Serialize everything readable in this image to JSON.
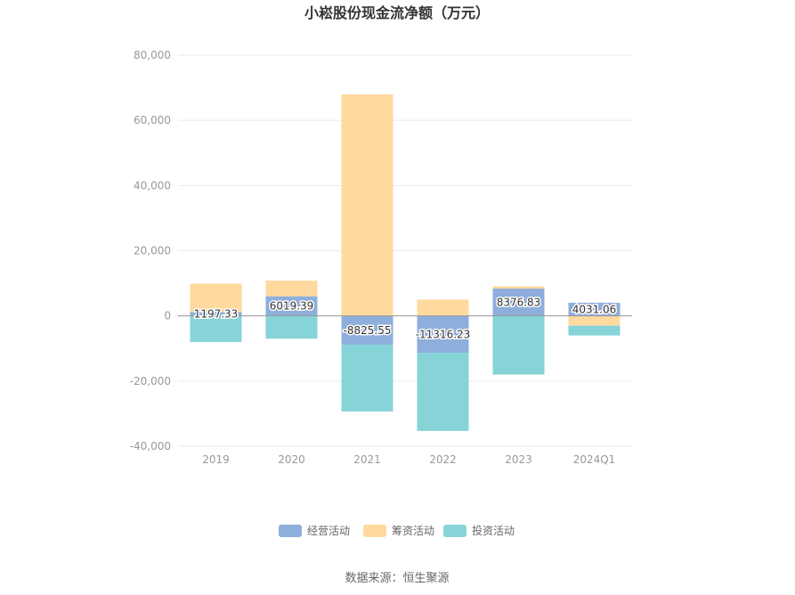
{
  "chart_data": {
    "type": "bar",
    "stacked": true,
    "title": "小崧股份现金流净额（万元）",
    "categories": [
      "2019",
      "2020",
      "2021",
      "2022",
      "2023",
      "2024Q1"
    ],
    "series": [
      {
        "name": "经营活动",
        "color": "#8eaedc",
        "values": [
          1197.33,
          6019.39,
          -8825.55,
          -11316.23,
          8376.83,
          4031.06
        ]
      },
      {
        "name": "筹资活动",
        "color": "#ffd99e",
        "values": [
          8700,
          4800,
          68000,
          5000,
          700,
          -3000
        ]
      },
      {
        "name": "投资活动",
        "color": "#86d4d8",
        "values": [
          -8000,
          -7000,
          -20500,
          -24000,
          -18000,
          -3000
        ]
      }
    ],
    "data_labels": [
      "1197.33",
      "6019.39",
      "-8825.55",
      "-11316.23",
      "8376.83",
      "4031.06"
    ],
    "yticks": [
      "80,000",
      "60,000",
      "40,000",
      "20,000",
      "0",
      "-20,000",
      "-40,000"
    ],
    "ylim": [
      -40000,
      80000
    ],
    "grid": true,
    "legend_position": "bottom"
  },
  "source": "数据来源：恒生聚源"
}
